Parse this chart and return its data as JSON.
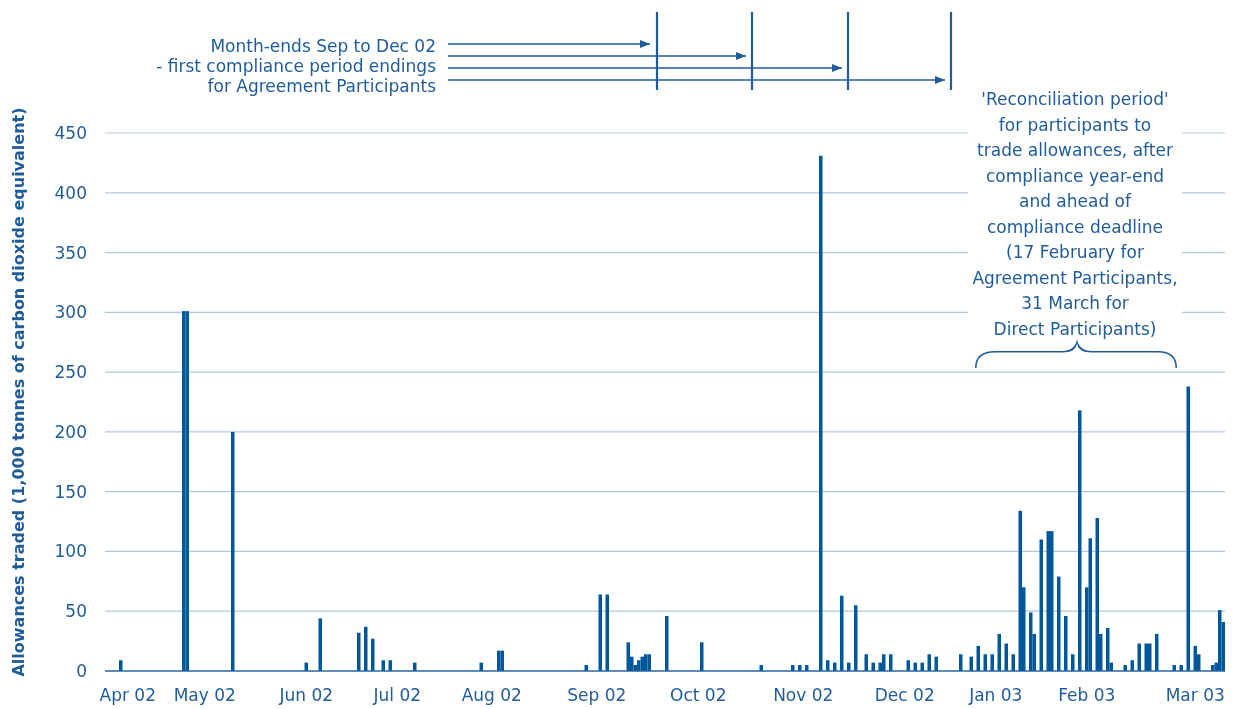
{
  "chart_data": {
    "type": "bar",
    "ylabel": "Allowances traded (1,000 tonnes of carbon dioxide equivalent)",
    "categories": [
      null,
      null,
      null,
      null,
      null,
      null,
      "Apr 02",
      null,
      null,
      null,
      null,
      null,
      null,
      null,
      null,
      null,
      null,
      null,
      null,
      null,
      null,
      null,
      null,
      null,
      null,
      null,
      null,
      null,
      "May 02",
      null,
      null,
      null,
      null,
      null,
      null,
      null,
      null,
      null,
      null,
      null,
      null,
      null,
      null,
      null,
      null,
      null,
      null,
      null,
      null,
      null,
      null,
      null,
      null,
      null,
      null,
      null,
      null,
      "Jun 02",
      null,
      null,
      null,
      null,
      null,
      null,
      null,
      null,
      null,
      null,
      null,
      null,
      null,
      null,
      null,
      null,
      null,
      null,
      null,
      null,
      null,
      null,
      null,
      null,
      null,
      "Jul 02",
      null,
      null,
      null,
      null,
      null,
      null,
      null,
      null,
      null,
      null,
      null,
      null,
      null,
      null,
      null,
      null,
      null,
      null,
      null,
      null,
      null,
      null,
      null,
      null,
      null,
      null,
      "Aug 02",
      null,
      null,
      null,
      null,
      null,
      null,
      null,
      null,
      null,
      null,
      null,
      null,
      null,
      null,
      null,
      null,
      null,
      null,
      null,
      null,
      null,
      null,
      null,
      null,
      null,
      null,
      null,
      null,
      null,
      "Sep 02",
      null,
      null,
      null,
      null,
      null,
      null,
      null,
      null,
      null,
      null,
      null,
      null,
      null,
      null,
      null,
      null,
      null,
      null,
      null,
      null,
      null,
      null,
      null,
      null,
      null,
      null,
      null,
      null,
      "Oct 02",
      null,
      null,
      null,
      null,
      null,
      null,
      null,
      null,
      null,
      null,
      null,
      null,
      null,
      null,
      null,
      null,
      null,
      null,
      null,
      null,
      null,
      null,
      null,
      null,
      null,
      null,
      null,
      null,
      null,
      "Nov 02",
      null,
      null,
      null,
      null,
      null,
      null,
      null,
      null,
      null,
      null,
      null,
      null,
      null,
      null,
      null,
      null,
      null,
      null,
      null,
      null,
      null,
      null,
      null,
      null,
      null,
      null,
      null,
      null,
      "Dec 02",
      null,
      null,
      null,
      null,
      null,
      null,
      null,
      null,
      null,
      null,
      null,
      null,
      null,
      null,
      null,
      null,
      null,
      null,
      null,
      null,
      null,
      null,
      null,
      null,
      null,
      "Jan 03",
      null,
      null,
      null,
      null,
      null,
      null,
      null,
      null,
      null,
      null,
      null,
      null,
      null,
      null,
      null,
      null,
      null,
      null,
      null,
      null,
      null,
      null,
      null,
      null,
      null,
      "Feb 03",
      null,
      null,
      null,
      null,
      null,
      null,
      null,
      null,
      null,
      null,
      null,
      null,
      null,
      null,
      null,
      null,
      null,
      null,
      null,
      null,
      null,
      null,
      null,
      null,
      null,
      null,
      null,
      null,
      null,
      null,
      "Mar 03",
      null,
      null,
      null,
      null,
      null,
      null,
      null,
      null
    ],
    "values": [
      null,
      null,
      null,
      null,
      9,
      null,
      null,
      null,
      null,
      null,
      null,
      null,
      null,
      null,
      null,
      null,
      null,
      null,
      null,
      null,
      null,
      null,
      301,
      301,
      null,
      null,
      null,
      null,
      null,
      null,
      null,
      null,
      null,
      null,
      null,
      null,
      200,
      null,
      null,
      null,
      null,
      null,
      null,
      null,
      null,
      null,
      null,
      null,
      null,
      null,
      null,
      null,
      null,
      null,
      null,
      null,
      null,
      7,
      null,
      null,
      null,
      44,
      null,
      null,
      null,
      null,
      null,
      null,
      null,
      null,
      null,
      null,
      32,
      null,
      37,
      null,
      27,
      null,
      null,
      9,
      null,
      9,
      null,
      null,
      null,
      null,
      null,
      null,
      7,
      null,
      null,
      null,
      null,
      null,
      null,
      null,
      null,
      null,
      null,
      null,
      null,
      null,
      null,
      null,
      null,
      null,
      null,
      7,
      null,
      null,
      null,
      null,
      17,
      17,
      null,
      null,
      null,
      null,
      null,
      null,
      null,
      null,
      null,
      null,
      null,
      null,
      null,
      null,
      null,
      null,
      null,
      null,
      null,
      null,
      null,
      null,
      null,
      5,
      null,
      null,
      null,
      64,
      null,
      64,
      null,
      null,
      null,
      null,
      null,
      24,
      12,
      5,
      9,
      12,
      14,
      14,
      null,
      null,
      null,
      null,
      46,
      null,
      null,
      null,
      null,
      null,
      null,
      null,
      null,
      null,
      24,
      null,
      null,
      null,
      null,
      null,
      null,
      null,
      null,
      null,
      null,
      null,
      null,
      null,
      null,
      null,
      null,
      5,
      null,
      null,
      null,
      null,
      null,
      null,
      null,
      null,
      5,
      null,
      5,
      null,
      5,
      null,
      null,
      null,
      431,
      null,
      9,
      null,
      7,
      null,
      63,
      null,
      7,
      null,
      55,
      null,
      null,
      14,
      null,
      7,
      null,
      7,
      14,
      null,
      14,
      null,
      null,
      null,
      null,
      9,
      null,
      7,
      null,
      7,
      null,
      14,
      null,
      12,
      null,
      null,
      null,
      null,
      null,
      null,
      14,
      null,
      null,
      12,
      null,
      21,
      null,
      14,
      null,
      14,
      null,
      31,
      null,
      23,
      null,
      14,
      null,
      134,
      70,
      null,
      49,
      31,
      null,
      110,
      null,
      117,
      117,
      null,
      79,
      null,
      46,
      null,
      14,
      null,
      218,
      null,
      70,
      111,
      null,
      128,
      31,
      null,
      36,
      7,
      null,
      null,
      null,
      5,
      null,
      9,
      null,
      23,
      null,
      23,
      23,
      null,
      31,
      null,
      null,
      null,
      null,
      5,
      null,
      5,
      null,
      238,
      null,
      21,
      14,
      null,
      null,
      null,
      5,
      7,
      51,
      41
    ],
    "color": "#00589b",
    "ylim": [
      0,
      450
    ],
    "yticks": [
      0,
      50,
      100,
      150,
      200,
      250,
      300,
      350,
      400,
      450
    ],
    "grid": "y",
    "annotations": [
      "Month-ends Sep to Dec 02\n- first compliance period endings\nfor Agreement Participants",
      "'Reconciliation period'\nfor participants to\ntrade allowances, after\ncompliance year-end\nand ahead of\ncompliance deadline\n(17 February for\nAgreement Participants,\n31 March for\nDirect Participants)"
    ]
  }
}
